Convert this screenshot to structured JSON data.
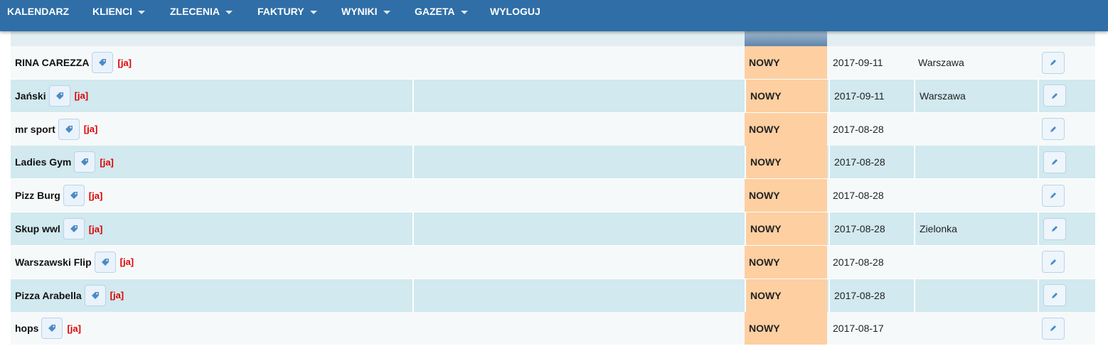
{
  "nav": {
    "items": [
      {
        "label": "KALENDARZ",
        "dropdown": false
      },
      {
        "label": "KLIENCI",
        "dropdown": true
      },
      {
        "label": "ZLECENIA",
        "dropdown": true
      },
      {
        "label": "FAKTURY",
        "dropdown": true
      },
      {
        "label": "WYNIKI",
        "dropdown": true
      },
      {
        "label": "GAZETA",
        "dropdown": true
      },
      {
        "label": "WYLOGUJ",
        "dropdown": false
      }
    ]
  },
  "table": {
    "rows": [
      {
        "name": "RINA CAREZZA",
        "tag": "[ja]",
        "status": "NOWY",
        "date": "2017-09-11",
        "city": "Warszawa"
      },
      {
        "name": "Jański",
        "tag": "[ja]",
        "status": "NOWY",
        "date": "2017-09-11",
        "city": "Warszawa"
      },
      {
        "name": "mr sport",
        "tag": "[ja]",
        "status": "NOWY",
        "date": "2017-08-28"
      },
      {
        "name": "Ladies Gym",
        "tag": "[ja]",
        "status": "NOWY",
        "date": "2017-08-28"
      },
      {
        "name": "Pizz Burg",
        "tag": "[ja]",
        "status": "NOWY",
        "date": "2017-08-28"
      },
      {
        "name": "Skup wwl",
        "tag": "[ja]",
        "status": "NOWY",
        "date": "2017-08-28",
        "city": "Zielonka"
      },
      {
        "name": "Warszawski Flip",
        "tag": "[ja]",
        "status": "NOWY",
        "date": "2017-08-28"
      },
      {
        "name": "Pizza Arabella",
        "tag": "[ja]",
        "status": "NOWY",
        "date": "2017-08-28"
      },
      {
        "name": "hops",
        "tag": "[ja]",
        "status": "NOWY",
        "date": "2017-08-17"
      }
    ]
  }
}
